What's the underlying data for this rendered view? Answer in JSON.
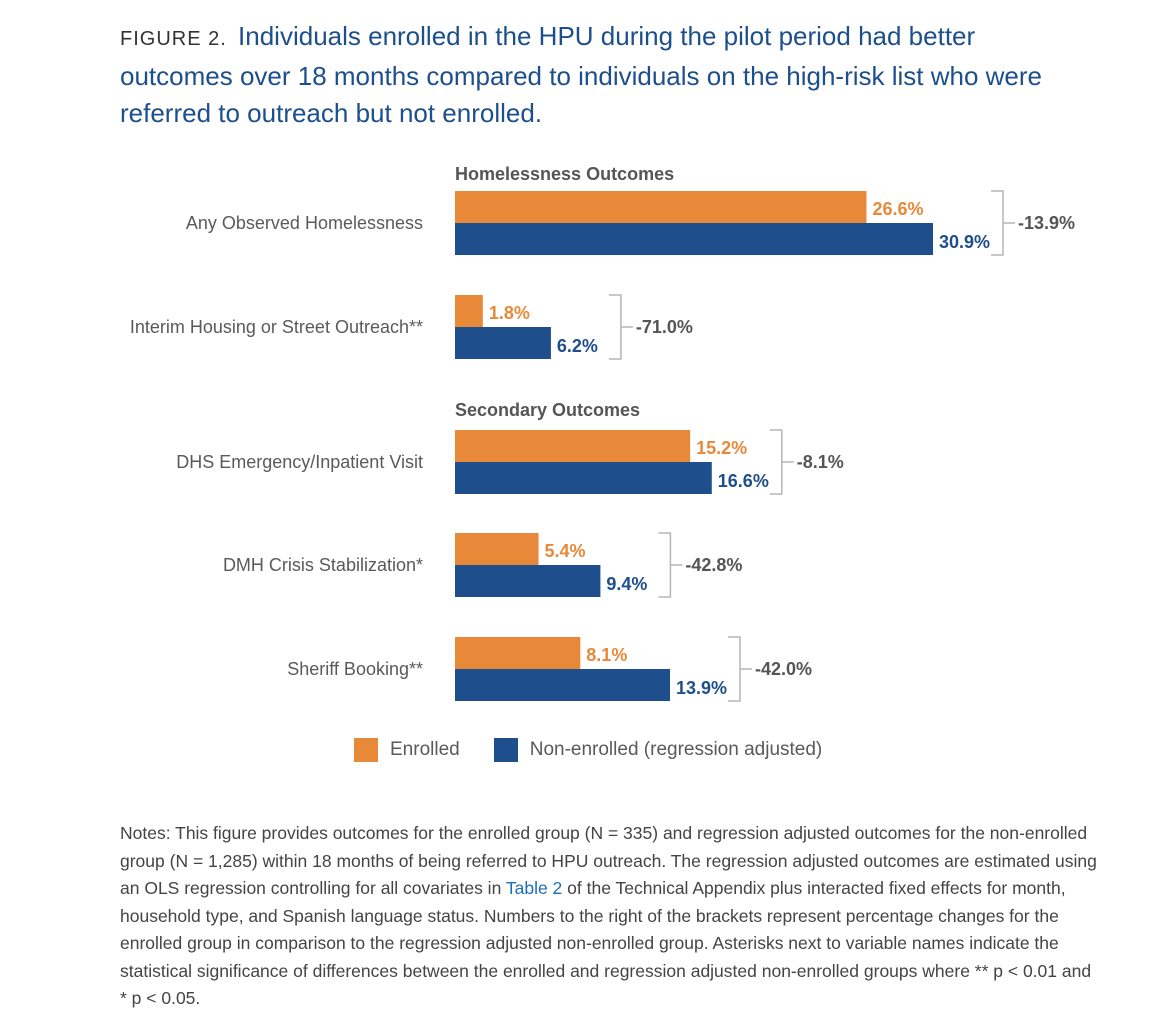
{
  "figure": {
    "label": "FIGURE 2.",
    "title": "Individuals enrolled in the HPU during the pilot period had better outcomes over 18 months compared to individuals on the high-risk list who were referred to outreach but not enrolled."
  },
  "colors": {
    "enrolled": "#e8893a",
    "non_enrolled": "#1f4e8c",
    "title": "#1d4f8c"
  },
  "chart_data": {
    "type": "bar",
    "orientation": "horizontal",
    "unit": "%",
    "sections": [
      "Homelessness Outcomes",
      "Secondary Outcomes"
    ],
    "categories": [
      "Any Observed Homelessness",
      "Interim Housing or Street Outreach**",
      "DHS Emergency/Inpatient Visit",
      "DMH Crisis Stabilization*",
      "Sheriff Booking**"
    ],
    "category_section": [
      "Homelessness Outcomes",
      "Homelessness Outcomes",
      "Secondary Outcomes",
      "Secondary Outcomes",
      "Secondary Outcomes"
    ],
    "series": [
      {
        "name": "Enrolled",
        "values": [
          26.6,
          1.8,
          15.2,
          5.4,
          8.1
        ],
        "labels": [
          "26.6%",
          "1.8%",
          "15.2%",
          "5.4%",
          "8.1%"
        ]
      },
      {
        "name": "Non-enrolled (regression adjusted)",
        "values": [
          30.9,
          6.2,
          16.6,
          9.4,
          13.9
        ],
        "labels": [
          "30.9%",
          "6.2%",
          "16.6%",
          "9.4%",
          "13.9%"
        ]
      }
    ],
    "percent_change": [
      -13.9,
      -71.0,
      -8.1,
      -42.8,
      -42.0
    ],
    "percent_change_labels": [
      "-13.9%",
      "-71.0%",
      "-8.1%",
      "-42.8%",
      "-42.0%"
    ],
    "xlim": [
      0,
      32
    ],
    "legend_position": "bottom"
  },
  "legend": {
    "enrolled": "Enrolled",
    "non_enrolled": "Non-enrolled (regression adjusted)"
  },
  "notes": {
    "part1": "Notes: This figure provides outcomes for the enrolled group (N = 335) and regression adjusted outcomes for the non-enrolled group (N = 1,285) within 18 months of being referred to HPU outreach. The regression adjusted outcomes are estimated using an OLS regression controlling for all covariates in ",
    "link": "Table 2",
    "part2": " of the Technical Appendix plus interacted fixed effects for month, household type, and Spanish language status. Numbers to the right of the brackets represent percentage changes for the enrolled group in comparison to the regression adjusted non-enrolled group. Asterisks next to variable names indicate the statistical significance of differences between the enrolled and regression adjusted non-enrolled groups where ** p < 0.01 and * p < 0.05."
  }
}
